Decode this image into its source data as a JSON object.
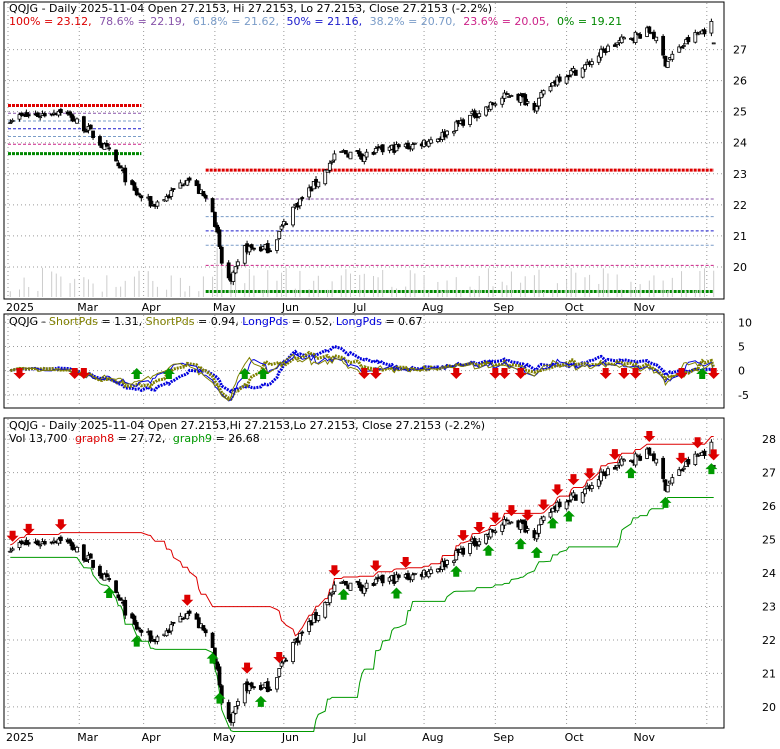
{
  "colors": {
    "background": "#ffffff",
    "panel_border": "#000000",
    "grid": "#9a9a9a",
    "candle_up": "#ffffff",
    "candle_down": "#000000",
    "fib_100": "#dd0000",
    "fib_786": "#8855aa",
    "fib_618": "#7a9cc8",
    "fib_50": "#1a1acc",
    "fib_382": "#7a9cc8",
    "fib_236": "#cc2288",
    "fib_0": "#008800",
    "support": "#008800",
    "resistance": "#dd0000",
    "short_pds": "#808000",
    "long_pds": "#0000dd",
    "arrow_up": "#009900",
    "arrow_down": "#dd0000",
    "graph8": "#dd0000",
    "graph9": "#009900",
    "volume": "#cccccc"
  },
  "panel1": {
    "title": "QQJG - Daily 2025-11-04 Open 27.2153, Hi 27.2153, Lo 27.2153, Close 27.2153 (-2.2%)",
    "fib_label_100": "100% = 23.12,",
    "fib_label_786": "78.6% = 22.19,",
    "fib_label_618": "61.8% = 21.62,",
    "fib_label_50": "50% = 21.16,",
    "fib_label_382": "38.2% = 20.70,",
    "fib_label_236": "23.6% = 20.05,",
    "fib_label_0": "0% = 19.21"
  },
  "panel2": {
    "title": "QQJG - ShortPds = 1.31, ShortPds = 0.94, LongPds = 0.52, LongPds = 0.67",
    "title_parts": [
      "QQJG - ",
      "ShortPds",
      " = 1.31, ",
      "ShortPds",
      " = 0.94, ",
      "LongPds",
      " = 0.52, ",
      "LongPds",
      " = 0.67"
    ]
  },
  "panel3": {
    "title": "QQJG - Daily 2025-11-04 Open 27.2153,Hi 27.2153,Lo 27.2153, Close 27.2153 (-2.2%)",
    "vol_label": "Vol 13,700",
    "graph8_label": "graph8",
    "graph8_value": " = 27.72,",
    "graph9_label": "graph9",
    "graph9_value": " = 26.68"
  },
  "chart_data": [
    {
      "type": "candlestick",
      "title": "QQJG - Daily 2025-11-04 Open 27.2153, Hi 27.2153, Lo 27.2153, Close 27.2153 (-2.2%)",
      "x_tick_labels": [
        "2025",
        "Mar",
        "Apr",
        "May",
        "Jun",
        "Jul",
        "Aug",
        "Sep",
        "Oct",
        "Nov"
      ],
      "y_tick_labels": [
        "20",
        "21",
        "22",
        "23",
        "24",
        "25",
        "26",
        "27"
      ],
      "ylim": [
        19.0,
        28.5
      ],
      "fib_levels": [
        {
          "label": "100%",
          "value": 23.12
        },
        {
          "label": "78.6%",
          "value": 22.19
        },
        {
          "label": "61.8%",
          "value": 21.62
        },
        {
          "label": "50%",
          "value": 21.16
        },
        {
          "label": "38.2%",
          "value": 20.7
        },
        {
          "label": "23.6%",
          "value": 20.05
        },
        {
          "label": "0%",
          "value": 19.21
        }
      ],
      "early_levels": [
        25.2,
        24.95,
        24.7,
        24.45,
        24.2,
        23.95,
        23.65
      ],
      "close_series": [
        {
          "date": "2025-01-02",
          "close": 24.8
        },
        {
          "date": "2025-01-15",
          "close": 24.9
        },
        {
          "date": "2025-01-24",
          "close": 25.05
        },
        {
          "date": "2025-02-05",
          "close": 24.4
        },
        {
          "date": "2025-02-15",
          "close": 23.6
        },
        {
          "date": "2025-02-25",
          "close": 22.4
        },
        {
          "date": "2025-03-05",
          "close": 22.0
        },
        {
          "date": "2025-03-12",
          "close": 22.3
        },
        {
          "date": "2025-03-20",
          "close": 22.9
        },
        {
          "date": "2025-03-31",
          "close": 21.9
        },
        {
          "date": "2025-04-04",
          "close": 20.1
        },
        {
          "date": "2025-04-08",
          "close": 19.5
        },
        {
          "date": "2025-04-14",
          "close": 20.6
        },
        {
          "date": "2025-04-25",
          "close": 20.6
        },
        {
          "date": "2025-05-05",
          "close": 21.9
        },
        {
          "date": "2025-05-15",
          "close": 22.7
        },
        {
          "date": "2025-05-25",
          "close": 23.7
        },
        {
          "date": "2025-06-05",
          "close": 23.6
        },
        {
          "date": "2025-06-15",
          "close": 23.8
        },
        {
          "date": "2025-06-25",
          "close": 23.9
        },
        {
          "date": "2025-07-08",
          "close": 24.2
        },
        {
          "date": "2025-07-18",
          "close": 24.7
        },
        {
          "date": "2025-07-30",
          "close": 25.2
        },
        {
          "date": "2025-08-08",
          "close": 25.6
        },
        {
          "date": "2025-08-18",
          "close": 25.2
        },
        {
          "date": "2025-08-28",
          "close": 26.1
        },
        {
          "date": "2025-09-08",
          "close": 26.4
        },
        {
          "date": "2025-09-18",
          "close": 27.0
        },
        {
          "date": "2025-09-28",
          "close": 27.4
        },
        {
          "date": "2025-10-08",
          "close": 27.6
        },
        {
          "date": "2025-10-14",
          "close": 26.6
        },
        {
          "date": "2025-10-24",
          "close": 27.3
        },
        {
          "date": "2025-11-03",
          "close": 27.8
        },
        {
          "date": "2025-11-04",
          "close": 27.2153
        }
      ]
    },
    {
      "type": "line",
      "title": "QQJG - ShortPds = 1.31, ShortPds = 0.94, LongPds = 0.52, LongPds = 0.67",
      "y_tick_labels": [
        "10",
        "5",
        "0",
        "-5"
      ],
      "ylim": [
        -7.5,
        11.5
      ],
      "series": [
        {
          "name": "ShortPds",
          "value": 1.31
        },
        {
          "name": "ShortPds",
          "value": 0.94
        },
        {
          "name": "LongPds",
          "value": 0.52
        },
        {
          "name": "LongPds",
          "value": 0.67
        }
      ]
    },
    {
      "type": "candlestick",
      "title": "QQJG - Daily 2025-11-04 Open 27.2153,Hi 27.2153,Lo 27.2153, Close 27.2153 (-2.2%)",
      "x_tick_labels": [
        "2025",
        "Mar",
        "Apr",
        "May",
        "Jun",
        "Jul",
        "Aug",
        "Sep",
        "Oct",
        "Nov"
      ],
      "y_tick_labels": [
        "28",
        "27",
        "26",
        "25",
        "24",
        "23",
        "22",
        "21",
        "20"
      ],
      "ylim": [
        19.4,
        28.6
      ],
      "series": [
        {
          "name": "graph8",
          "value": 27.72
        },
        {
          "name": "graph9",
          "value": 26.68
        }
      ],
      "volume": 13700
    }
  ]
}
